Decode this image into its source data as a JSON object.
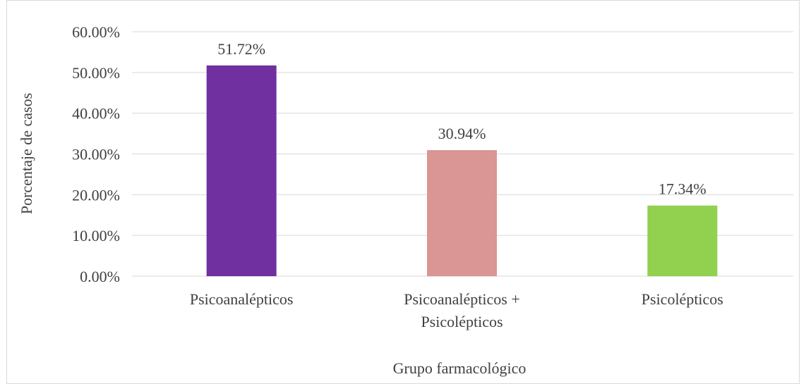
{
  "chart_data": {
    "type": "bar",
    "categories": [
      "Psicoanalépticos",
      "Psicoanalépticos + Psicolépticos",
      "Psicolépticos"
    ],
    "category_lines": [
      [
        "Psicoanalépticos"
      ],
      [
        "Psicoanalépticos +",
        "Psicolépticos"
      ],
      [
        "Psicolépticos"
      ]
    ],
    "values": [
      51.72,
      30.94,
      17.34
    ],
    "data_labels": [
      "51.72%",
      "30.94%",
      "17.34%"
    ],
    "bar_colors": [
      "#7030a0",
      "#da9694",
      "#92d050"
    ],
    "xlabel": "Grupo farmacológico",
    "ylabel": "Porcentaje de casos",
    "ylim": [
      0,
      60
    ],
    "yticks": [
      0,
      10,
      20,
      30,
      40,
      50,
      60
    ],
    "ytick_labels": [
      "0.00%",
      "10.00%",
      "20.00%",
      "30.00%",
      "40.00%",
      "50.00%",
      "60.00%"
    ],
    "grid": true,
    "legend": "none",
    "gridline_color": "#d9d9d9",
    "text_color": "#404040"
  }
}
